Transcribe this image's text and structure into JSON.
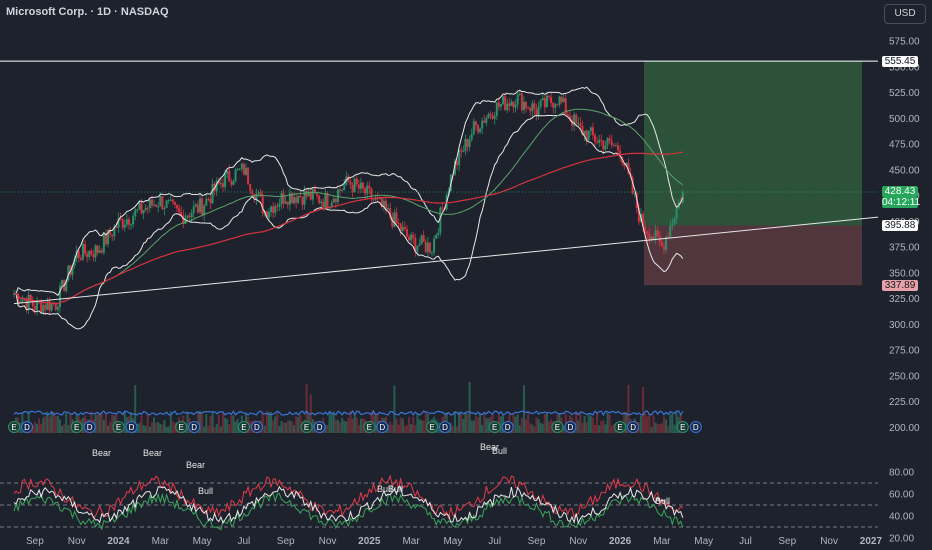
{
  "header": {
    "title": "Microsoft Corp. · 1D · NASDAQ",
    "currency": "USD"
  },
  "price_labels": {
    "resistance": "555.45",
    "current": "428.43",
    "countdown": "04:12:11",
    "entry": "395.88",
    "stop": "337.89"
  },
  "colors": {
    "background": "#1e222d",
    "long_zone": "#2f5a3c",
    "short_zone": "#5a3a42",
    "ma_green": "#5ba36a",
    "ma_red": "#d6333f",
    "volume_ma": "#3a74d6",
    "rsi_red": "#e23b4a",
    "rsi_green": "#3aa55a"
  },
  "chart_data": [
    {
      "type": "candlestick",
      "symbol": "MSFT",
      "interval": "1D",
      "exchange": "NASDAQ",
      "y_ticks": [
        575,
        550,
        525,
        500,
        475,
        450,
        425,
        400,
        375,
        350,
        325,
        300,
        275,
        250,
        225,
        200
      ],
      "ylim": [
        185,
        590
      ],
      "x_ticks": [
        "Sep",
        "Nov",
        "2024",
        "Mar",
        "May",
        "Jul",
        "Sep",
        "Nov",
        "2025",
        "Mar",
        "May",
        "Jul",
        "Sep",
        "Nov",
        "2026",
        "Mar",
        "May",
        "Jul",
        "Sep",
        "Nov",
        "2027"
      ],
      "x": [
        "2023-08",
        "2023-09",
        "2023-10",
        "2023-11",
        "2023-12",
        "2024-01",
        "2024-02",
        "2024-03",
        "2024-04",
        "2024-05",
        "2024-06",
        "2024-07",
        "2024-08",
        "2024-09",
        "2024-10",
        "2024-11",
        "2024-12",
        "2025-01",
        "2025-02",
        "2025-03",
        "2025-04",
        "2025-05",
        "2025-06",
        "2025-07",
        "2025-08",
        "2025-09",
        "2025-10",
        "2025-11",
        "2025-12",
        "2026-01",
        "2026-02",
        "2026-03",
        "2026-04"
      ],
      "close": [
        330,
        318,
        320,
        368,
        372,
        398,
        410,
        420,
        405,
        415,
        440,
        450,
        410,
        425,
        425,
        420,
        438,
        425,
        405,
        380,
        375,
        450,
        490,
        510,
        520,
        508,
        520,
        490,
        478,
        470,
        400,
        375,
        428
      ],
      "lines": {
        "horizontal_resistance": 555.45,
        "rising_trendline": [
          [
            "2023-08",
            320
          ],
          [
            "2026-04",
            385
          ]
        ]
      },
      "position": {
        "entry": 395.88,
        "target": 555.45,
        "stop": 337.89
      },
      "indicators": [
        "Bollinger Bands",
        "Moving Average (green)",
        "Moving Average (red)"
      ]
    },
    {
      "type": "bar",
      "panel": "volume",
      "indicators": [
        "Volume MA"
      ],
      "event_markers": [
        "E",
        "D"
      ]
    },
    {
      "type": "line",
      "panel": "rsi",
      "y_ticks": [
        80.0,
        60.0,
        40.0,
        20.0
      ],
      "ylim": [
        10,
        90
      ],
      "levels": [
        70,
        50,
        30
      ],
      "annotations": [
        "Bear",
        "Bear",
        "Bear",
        "Bull",
        "Bull",
        "Bull",
        "Bear",
        "Bull",
        "Bull"
      ]
    }
  ]
}
